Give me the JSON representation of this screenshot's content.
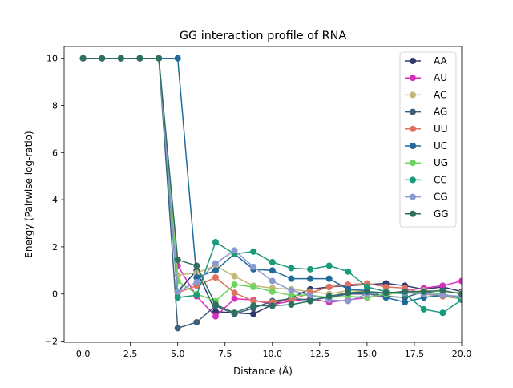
{
  "chart_data": {
    "type": "line",
    "title": "GG interaction profile of  RNA",
    "xlabel": "Distance (Å)",
    "ylabel": "Energy (Pairwise log-ratio)",
    "xlim": [
      -1.0,
      20.0
    ],
    "ylim": [
      -2.05,
      10.5
    ],
    "x_ticks": [
      0.0,
      2.5,
      5.0,
      7.5,
      10.0,
      12.5,
      15.0,
      17.5,
      20.0
    ],
    "x_tick_labels": [
      "0.0",
      "2.5",
      "5.0",
      "7.5",
      "10.0",
      "12.5",
      "15.0",
      "17.5",
      "20.0"
    ],
    "y_ticks": [
      -2,
      0,
      2,
      4,
      6,
      8,
      10
    ],
    "y_tick_labels": [
      "−2",
      "0",
      "2",
      "4",
      "6",
      "8",
      "10"
    ],
    "grid": false,
    "legend_position": "top-right",
    "x": [
      0,
      1,
      2,
      3,
      4,
      5,
      6,
      7,
      8,
      9,
      10,
      11,
      12,
      13,
      14,
      15,
      16,
      17,
      18,
      19,
      20
    ],
    "series": [
      {
        "name": "AA",
        "color": "#2e3a6e",
        "values": [
          10,
          10,
          10,
          10,
          10,
          0.1,
          1.0,
          -0.75,
          -0.8,
          -0.85,
          -0.45,
          -0.15,
          0.2,
          0.3,
          0.35,
          0.4,
          0.45,
          0.35,
          0.2,
          0.3,
          0.1
        ]
      },
      {
        "name": "AU",
        "color": "#d62fbe",
        "values": [
          10,
          10,
          10,
          10,
          10,
          1.2,
          -0.1,
          -0.95,
          -0.2,
          -0.25,
          -0.45,
          -0.3,
          -0.2,
          -0.35,
          -0.25,
          -0.15,
          -0.05,
          0.15,
          0.25,
          0.35,
          0.55
        ]
      },
      {
        "name": "AC",
        "color": "#c4b77a",
        "values": [
          10,
          10,
          10,
          10,
          10,
          0.8,
          0.9,
          1.2,
          0.75,
          0.35,
          0.25,
          0.2,
          0.1,
          0.0,
          0.15,
          0.1,
          0.0,
          0.05,
          0.15,
          0.1,
          0.05
        ]
      },
      {
        "name": "AG",
        "color": "#3d5f7a",
        "values": [
          10,
          10,
          10,
          10,
          10,
          -1.45,
          -1.2,
          -0.5,
          -0.85,
          -0.6,
          -0.3,
          -0.2,
          -0.25,
          -0.15,
          0.0,
          0.0,
          -0.1,
          -0.15,
          0.1,
          0.0,
          -0.2
        ]
      },
      {
        "name": "UU",
        "color": "#e07060",
        "values": [
          10,
          10,
          10,
          10,
          10,
          0.05,
          0.35,
          0.7,
          0.05,
          -0.3,
          -0.35,
          -0.25,
          0.05,
          0.3,
          0.4,
          0.45,
          0.3,
          0.25,
          0.0,
          -0.1,
          -0.2
        ]
      },
      {
        "name": "UC",
        "color": "#1f6a9a",
        "values": [
          10,
          10,
          10,
          10,
          10,
          10,
          0.7,
          1.0,
          1.7,
          1.05,
          1.0,
          0.65,
          0.65,
          0.65,
          0.2,
          0.15,
          -0.15,
          -0.35,
          -0.15,
          -0.05,
          -0.15
        ]
      },
      {
        "name": "UG",
        "color": "#6cd45f",
        "values": [
          10,
          10,
          10,
          10,
          10,
          0.55,
          0.0,
          -0.3,
          0.4,
          0.3,
          0.1,
          -0.05,
          -0.05,
          -0.15,
          -0.1,
          -0.15,
          0.0,
          0.05,
          0.05,
          0.0,
          -0.25
        ]
      },
      {
        "name": "CC",
        "color": "#1a9a7a",
        "values": [
          10,
          10,
          10,
          10,
          10,
          -0.15,
          -0.05,
          2.2,
          1.7,
          1.8,
          1.35,
          1.1,
          1.05,
          1.2,
          0.95,
          0.3,
          0.1,
          0.0,
          -0.65,
          -0.8,
          -0.25
        ]
      },
      {
        "name": "CG",
        "color": "#8a9ad0",
        "values": [
          10,
          10,
          10,
          10,
          10,
          0.1,
          0.5,
          1.3,
          1.85,
          1.15,
          0.55,
          0.15,
          -0.05,
          -0.25,
          -0.3,
          0.0,
          0.05,
          0.05,
          0.0,
          -0.05,
          -0.1
        ]
      },
      {
        "name": "GG",
        "color": "#2e7060",
        "values": [
          10,
          10,
          10,
          10,
          10,
          1.45,
          1.2,
          -0.45,
          -0.8,
          -0.5,
          -0.5,
          -0.45,
          -0.3,
          -0.1,
          0.05,
          0.1,
          0.05,
          0.1,
          0.1,
          0.15,
          0.0
        ]
      }
    ]
  }
}
